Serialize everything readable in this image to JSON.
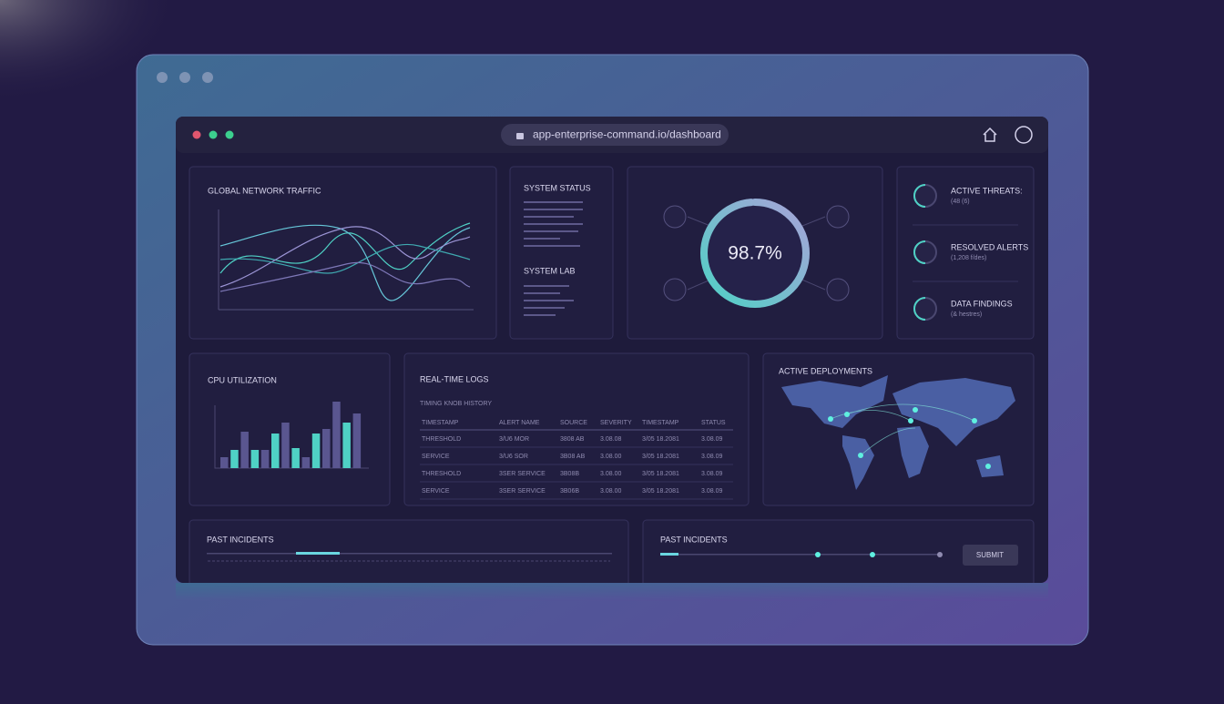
{
  "browser": {
    "url": "app-enterprise-command.io/dashboard"
  },
  "traffic": {
    "title": "GLOBAL NETWORK TRAFFIC"
  },
  "status": {
    "title": "SYSTEM STATUS",
    "subtitle": "SYSTEM LAB"
  },
  "gauge": {
    "value": 98.7,
    "label": "98.7%"
  },
  "stats": [
    {
      "label": "ACTIVE THREATS:",
      "detail": "(48 (6)"
    },
    {
      "label": "RESOLVED ALERTS",
      "detail": "(1,208 f/des)"
    },
    {
      "label": "DATA FINDINGS",
      "detail": "(& hestres)"
    }
  ],
  "cpu": {
    "title": "CPU UTILIZATION",
    "values": [
      12,
      20,
      40,
      20,
      20,
      38,
      50,
      22,
      12,
      38,
      43,
      73,
      50,
      60
    ],
    "colors": [
      "#5a5690",
      "#4fd1c5",
      "#5a5690",
      "#4fd1c5",
      "#5a5690",
      "#4fd1c5",
      "#5a5690",
      "#4fd1c5",
      "#5a5690",
      "#4fd1c5",
      "#5a5690",
      "#5a5690",
      "#4fd1c5",
      "#5a5690"
    ]
  },
  "logs": {
    "title": "REAL-TIME LOGS",
    "subtitle": "TIMING KNOB HISTORY",
    "columns": [
      "TIMESTAMP",
      "ALERT NAME",
      "SOURCE",
      "SEVERITY",
      "TIMESTAMP",
      "STATUS"
    ],
    "rows": [
      [
        "THRESHOLD",
        "3/U6 MOR",
        "3808 AB",
        "3.08.08",
        "3/05 18.2081",
        "3.08.09"
      ],
      [
        "SERVICE",
        "3/U6 SOR",
        "3B08 AB",
        "3.08.00",
        "3/05 18.2081",
        "3.08.09"
      ],
      [
        "THRESHOLD",
        "3SER SERVICE",
        "3B08B",
        "3.08.00",
        "3/05 18.2081",
        "3.08.09"
      ],
      [
        "SERVICE",
        "3SER SERVICE",
        "3B06B",
        "3.08.00",
        "3/05 18.2081",
        "3.08.09"
      ]
    ]
  },
  "map": {
    "title": "ACTIVE DEPLOYMENTS"
  },
  "incidents": [
    {
      "title": "PAST INCIDENTS"
    },
    {
      "title": "PAST INCIDENTS",
      "button": "SUBMIT"
    }
  ]
}
